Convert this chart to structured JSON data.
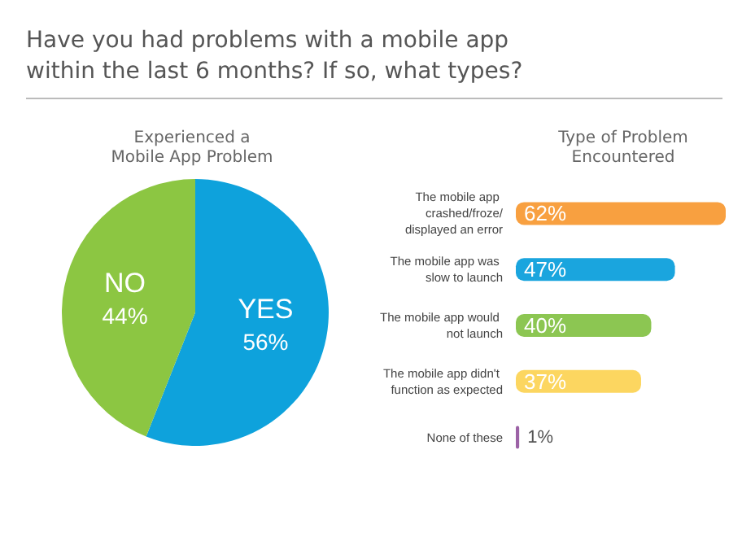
{
  "chart_data": [
    {
      "type": "pie",
      "title": "Have you had problems with a mobile app within the last 6 months? If so, what types?",
      "subtitle": "Experienced a\nMobile App Problem",
      "categories": [
        "YES",
        "NO"
      ],
      "values": [
        56,
        44
      ],
      "value_labels": [
        "56%",
        "44%"
      ],
      "colors": [
        "#0ea2dc",
        "#8cc642"
      ]
    },
    {
      "type": "bar",
      "orientation": "horizontal",
      "title": "Type of Problem\nEncountered",
      "categories": [
        "The mobile app crashed/froze/displayed an error",
        "The mobile app was slow to launch",
        "The mobile app would not launch",
        "The mobile app didn't function as expected",
        "None of these"
      ],
      "values": [
        62,
        47,
        40,
        37,
        1
      ],
      "value_labels": [
        "62%",
        "47%",
        "40%",
        "37%",
        "1%"
      ],
      "colors": [
        "#f8a040",
        "#1aa5de",
        "#8cc652",
        "#fcd660",
        "#9c62a6"
      ]
    }
  ]
}
